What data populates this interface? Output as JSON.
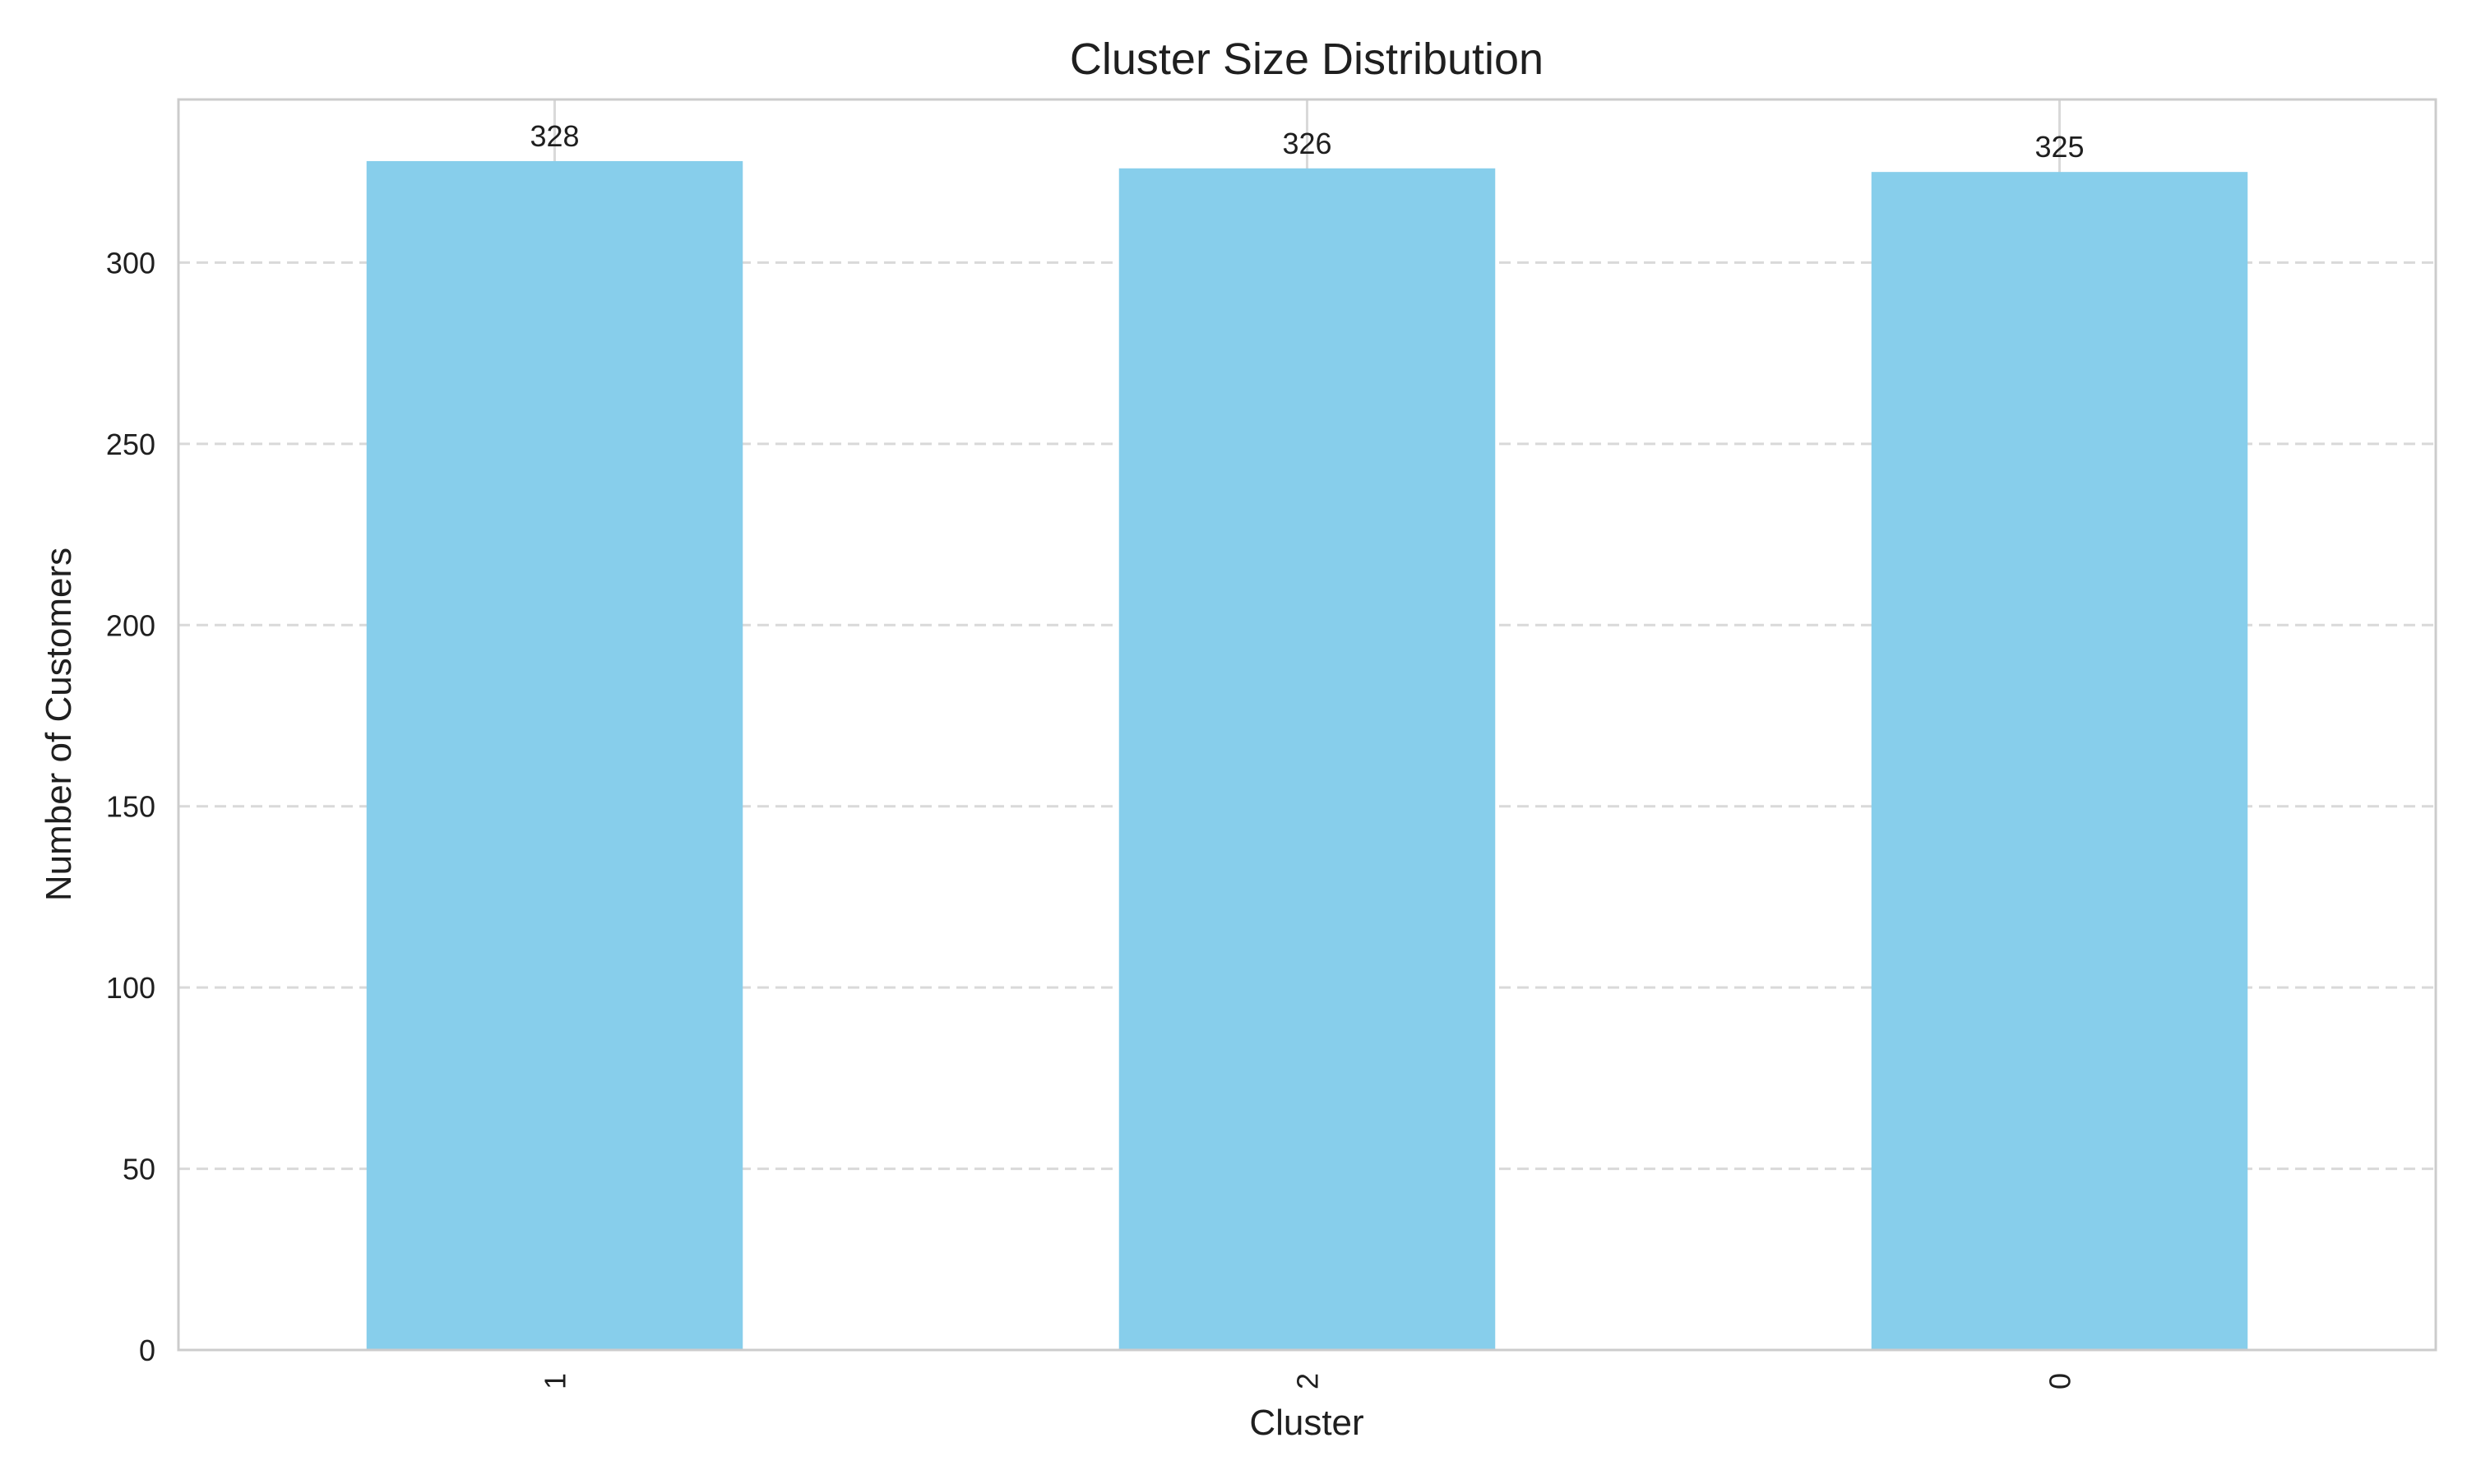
{
  "chart_data": {
    "type": "bar",
    "title": "Cluster Size Distribution",
    "xlabel": "Cluster",
    "ylabel": "Number of Customers",
    "categories": [
      "1",
      "2",
      "0"
    ],
    "values": [
      328,
      326,
      325
    ],
    "data_labels": [
      "328",
      "326",
      "325"
    ],
    "ylim": [
      0,
      345
    ],
    "yticks": [
      0,
      50,
      100,
      150,
      200,
      250,
      300
    ],
    "grid": "y-dashed",
    "bar_color": "#87CEEB",
    "x_tick_rotation": "vertical"
  }
}
